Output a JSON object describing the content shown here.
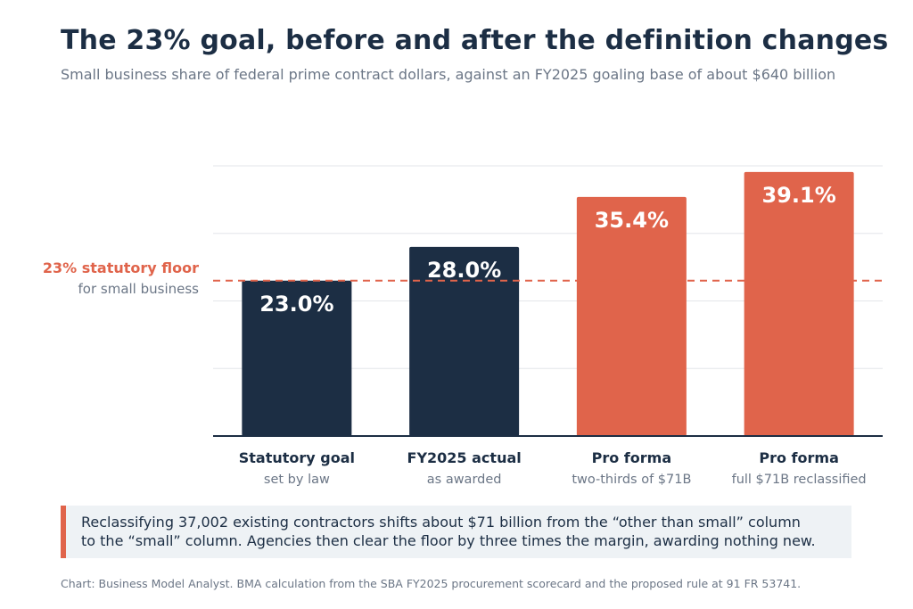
{
  "title": "The 23% goal, before and after the definition changes",
  "subtitle": "Small business share of federal prime contract dollars, against an FY2025 goaling base of about $640 billion",
  "reference_line": {
    "value": 23,
    "label": "23% statutory floor",
    "sublabel": "for small business",
    "color": "#e0644b"
  },
  "chart_data": {
    "type": "bar",
    "categories": [
      "Statutory goal",
      "FY2025 actual",
      "Pro forma",
      "Pro forma"
    ],
    "category_sublabels": [
      "set by law",
      "as awarded",
      "two-thirds of $71B",
      "full $71B reclassified"
    ],
    "values": [
      23.0,
      28.0,
      35.4,
      39.1
    ],
    "value_labels": [
      "23.0%",
      "28.0%",
      "35.4%",
      "39.1%"
    ],
    "bar_colors": [
      "#1c2e44",
      "#1c2e44",
      "#e0644b",
      "#e0644b"
    ],
    "ylim": [
      0,
      40
    ],
    "gridlines": [
      10,
      20,
      30,
      40
    ],
    "grid": true
  },
  "callout": {
    "line1": "Reclassifying 37,002 existing contractors shifts about $71 billion from the “other than small” column",
    "line2": "to the “small” column. Agencies then clear the floor by three times the margin, awarding nothing new."
  },
  "source": "Chart: Business Model Analyst. BMA calculation from the SBA FY2025 procurement scorecard and the proposed rule at 91 FR 53741."
}
